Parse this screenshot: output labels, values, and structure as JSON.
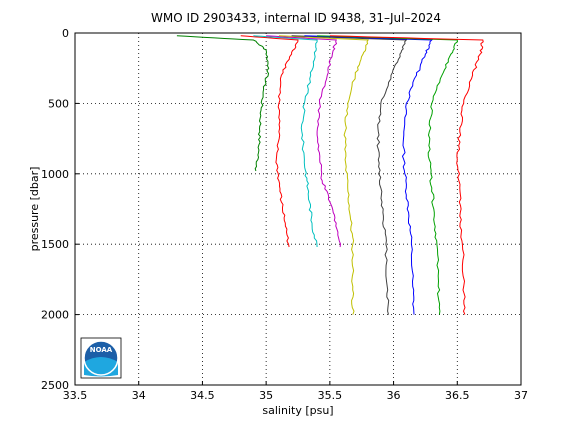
{
  "chart_data": {
    "type": "line",
    "title": "WMO ID 2903433, internal ID 9438, 31–Jul–2024",
    "xlabel": "salinity [psu]",
    "ylabel": "pressure [dbar]",
    "xlim": [
      33.5,
      37
    ],
    "ylim": [
      0,
      2500
    ],
    "y_reversed": true,
    "x_ticks": [
      "33.5",
      "34",
      "34.5",
      "35",
      "35.5",
      "36",
      "36.5",
      "37"
    ],
    "y_ticks": [
      "0",
      "500",
      "1000",
      "1500",
      "2000",
      "2500"
    ],
    "grid": true,
    "series": [
      {
        "color": "#008000",
        "offset_psu": 0.0,
        "x": [
          34.3,
          34.9,
          35.0,
          35.02,
          34.98,
          34.96,
          34.95,
          34.94,
          34.92
        ],
        "y": [
          20,
          50,
          120,
          250,
          400,
          550,
          700,
          850,
          980
        ]
      },
      {
        "color": "#ff0000",
        "offset_psu": 0.0,
        "x": [
          34.8,
          35.25,
          35.2,
          35.12,
          35.1,
          35.1,
          35.08,
          35.1,
          35.12,
          35.15,
          35.18
        ],
        "y": [
          20,
          50,
          150,
          300,
          500,
          700,
          900,
          1050,
          1200,
          1350,
          1520
        ]
      },
      {
        "color": "#00bfbf",
        "offset_psu": 0.0,
        "x": [
          34.9,
          35.4,
          35.38,
          35.35,
          35.3,
          35.28,
          35.3,
          35.32,
          35.34,
          35.36,
          35.4
        ],
        "y": [
          20,
          50,
          150,
          300,
          500,
          700,
          900,
          1050,
          1200,
          1350,
          1520
        ]
      },
      {
        "color": "#bf00bf",
        "offset_psu": 0.0,
        "x": [
          35.0,
          35.55,
          35.52,
          35.48,
          35.42,
          35.4,
          35.42,
          35.44,
          35.5,
          35.55,
          35.58
        ],
        "y": [
          20,
          50,
          150,
          300,
          500,
          700,
          900,
          1050,
          1200,
          1350,
          1520
        ]
      },
      {
        "color": "#bfbf00",
        "offset_psu": 0.0,
        "x": [
          35.1,
          35.8,
          35.76,
          35.7,
          35.64,
          35.62,
          35.62,
          35.64,
          35.66,
          35.68,
          35.68,
          35.68
        ],
        "y": [
          20,
          50,
          150,
          300,
          500,
          700,
          900,
          1100,
          1300,
          1500,
          1800,
          2000
        ]
      },
      {
        "color": "#404040",
        "offset_psu": 0.0,
        "x": [
          35.2,
          36.1,
          36.05,
          35.98,
          35.9,
          35.88,
          35.88,
          35.9,
          35.92,
          35.94,
          35.95,
          35.96
        ],
        "y": [
          20,
          50,
          150,
          300,
          500,
          700,
          900,
          1100,
          1300,
          1500,
          1800,
          2000
        ]
      },
      {
        "color": "#0000ff",
        "offset_psu": 0.0,
        "x": [
          35.3,
          36.3,
          36.25,
          36.18,
          36.1,
          36.08,
          36.08,
          36.1,
          36.12,
          36.14,
          36.15,
          36.16
        ],
        "y": [
          20,
          50,
          150,
          300,
          500,
          700,
          900,
          1100,
          1300,
          1500,
          1800,
          2000
        ]
      },
      {
        "color": "#00a000",
        "offset_psu": 0.0,
        "x": [
          35.4,
          36.5,
          36.45,
          36.38,
          36.3,
          36.28,
          36.28,
          36.3,
          36.32,
          36.34,
          36.35,
          36.36
        ],
        "y": [
          20,
          50,
          150,
          300,
          500,
          700,
          900,
          1100,
          1300,
          1500,
          1800,
          2000
        ]
      },
      {
        "color": "#ff0000",
        "offset_psu": 0.0,
        "x": [
          35.5,
          36.7,
          36.68,
          36.62,
          36.55,
          36.52,
          36.5,
          36.52,
          36.52,
          36.54,
          36.55,
          36.56
        ],
        "y": [
          20,
          50,
          150,
          300,
          500,
          700,
          900,
          1100,
          1300,
          1500,
          1800,
          2000
        ]
      }
    ]
  },
  "logo": {
    "text": "NOAA"
  }
}
